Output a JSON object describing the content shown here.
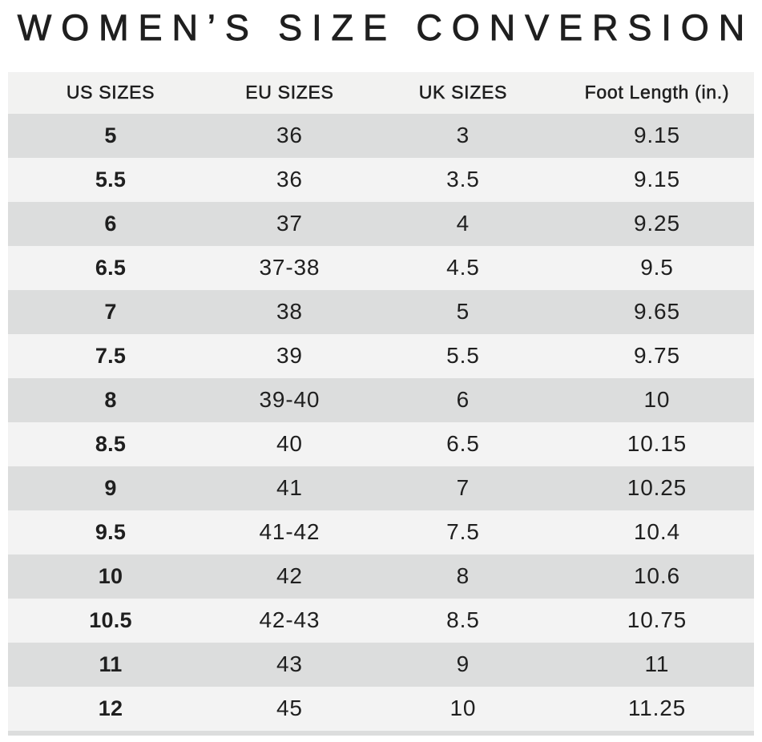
{
  "chart_data": {
    "type": "table",
    "title": "WOMEN’S SIZE CONVERSION",
    "columns": [
      "US SIZES",
      "EU SIZES",
      "UK SIZES",
      "Foot Length (in.)"
    ],
    "rows": [
      [
        "5",
        "36",
        "3",
        "9.15"
      ],
      [
        "5.5",
        "36",
        "3.5",
        "9.15"
      ],
      [
        "6",
        "37",
        "4",
        "9.25"
      ],
      [
        "6.5",
        "37-38",
        "4.5",
        "9.5"
      ],
      [
        "7",
        "38",
        "5",
        "9.65"
      ],
      [
        "7.5",
        "39",
        "5.5",
        "9.75"
      ],
      [
        "8",
        "39-40",
        "6",
        "10"
      ],
      [
        "8.5",
        "40",
        "6.5",
        "10.15"
      ],
      [
        "9",
        "41",
        "7",
        "10.25"
      ],
      [
        "9.5",
        "41-42",
        "7.5",
        "10.4"
      ],
      [
        "10",
        "42",
        "8",
        "10.6"
      ],
      [
        "10.5",
        "42-43",
        "8.5",
        "10.75"
      ],
      [
        "11",
        "43",
        "9",
        "11"
      ],
      [
        "12",
        "45",
        "10",
        "11.25"
      ]
    ],
    "layout": {
      "grid": false,
      "row_striping": "alternating",
      "first_row_shade": "dark",
      "bold_column": "US SIZES",
      "partial_next_row_visible": true
    }
  },
  "colors": {
    "header_bg": "#f2f2f1",
    "row_dark": "#dcdddd",
    "row_light": "#f3f3f3",
    "text": "#1f1f1f"
  }
}
